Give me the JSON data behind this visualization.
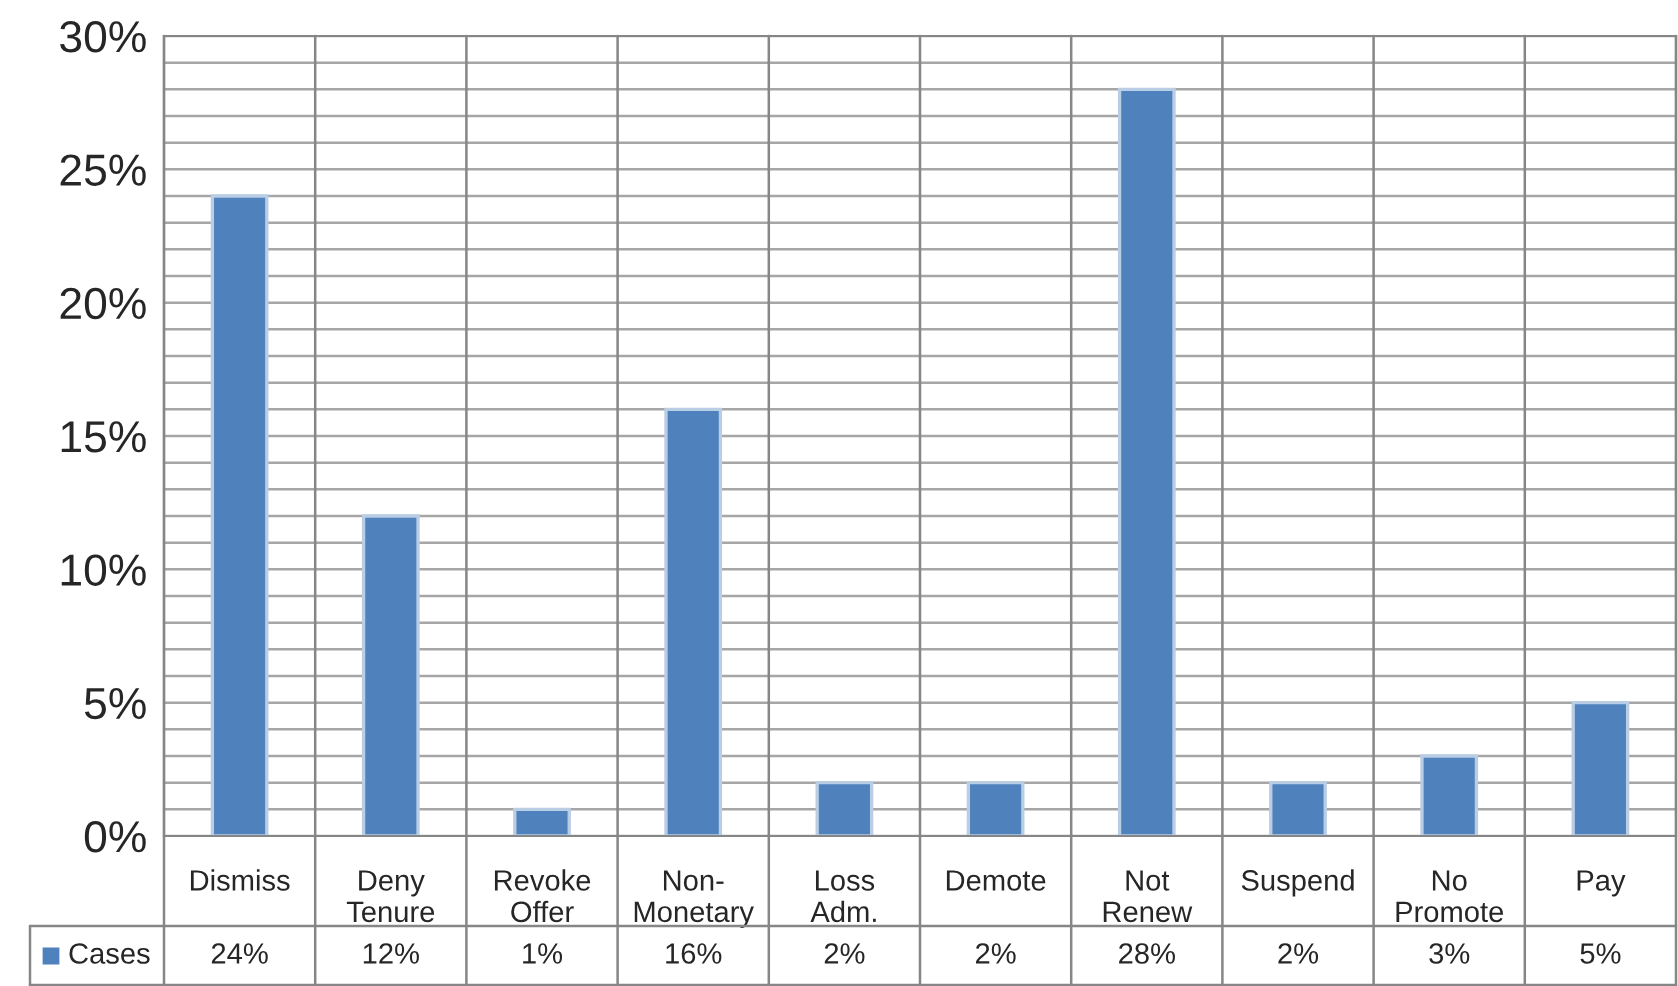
{
  "chart_data": {
    "type": "bar",
    "categories": [
      "Dismiss",
      "Deny Tenure",
      "Revoke Offer",
      "Non-Monetary",
      "Loss Adm.",
      "Demote",
      "Not Renew",
      "Suspend",
      "No Promote",
      "Pay"
    ],
    "series": [
      {
        "name": "Cases",
        "color": "#4f81bd",
        "values": [
          24,
          12,
          1,
          16,
          2,
          2,
          28,
          2,
          3,
          5
        ]
      }
    ],
    "ylim": [
      0,
      30
    ],
    "yticks": [
      {
        "value": 0,
        "label": "0%"
      },
      {
        "value": 1,
        "label": null
      },
      {
        "value": 2,
        "label": null
      },
      {
        "value": 3,
        "label": null
      },
      {
        "value": 4,
        "label": null
      },
      {
        "value": 5,
        "label": "5%"
      },
      {
        "value": 6,
        "label": null
      },
      {
        "value": 7,
        "label": null
      },
      {
        "value": 8,
        "label": null
      },
      {
        "value": 9,
        "label": null
      },
      {
        "value": 10,
        "label": "10%"
      },
      {
        "value": 11,
        "label": null
      },
      {
        "value": 12,
        "label": null
      },
      {
        "value": 13,
        "label": null
      },
      {
        "value": 14,
        "label": null
      },
      {
        "value": 15,
        "label": "15%"
      },
      {
        "value": 16,
        "label": null
      },
      {
        "value": 17,
        "label": null
      },
      {
        "value": 18,
        "label": null
      },
      {
        "value": 19,
        "label": null
      },
      {
        "value": 20,
        "label": "20%"
      },
      {
        "value": 21,
        "label": null
      },
      {
        "value": 22,
        "label": null
      },
      {
        "value": 23,
        "label": null
      },
      {
        "value": 24,
        "label": null
      },
      {
        "value": 25,
        "label": "25%"
      },
      {
        "value": 26,
        "label": null
      },
      {
        "value": 27,
        "label": null
      },
      {
        "value": 28,
        "label": null
      },
      {
        "value": 29,
        "label": null
      },
      {
        "value": 30,
        "label": "30%"
      }
    ],
    "value_labels": [
      "24%",
      "12%",
      "1%",
      "16%",
      "2%",
      "2%",
      "28%",
      "2%",
      "3%",
      "5%"
    ],
    "grid": "y",
    "legend": "bottom left"
  }
}
